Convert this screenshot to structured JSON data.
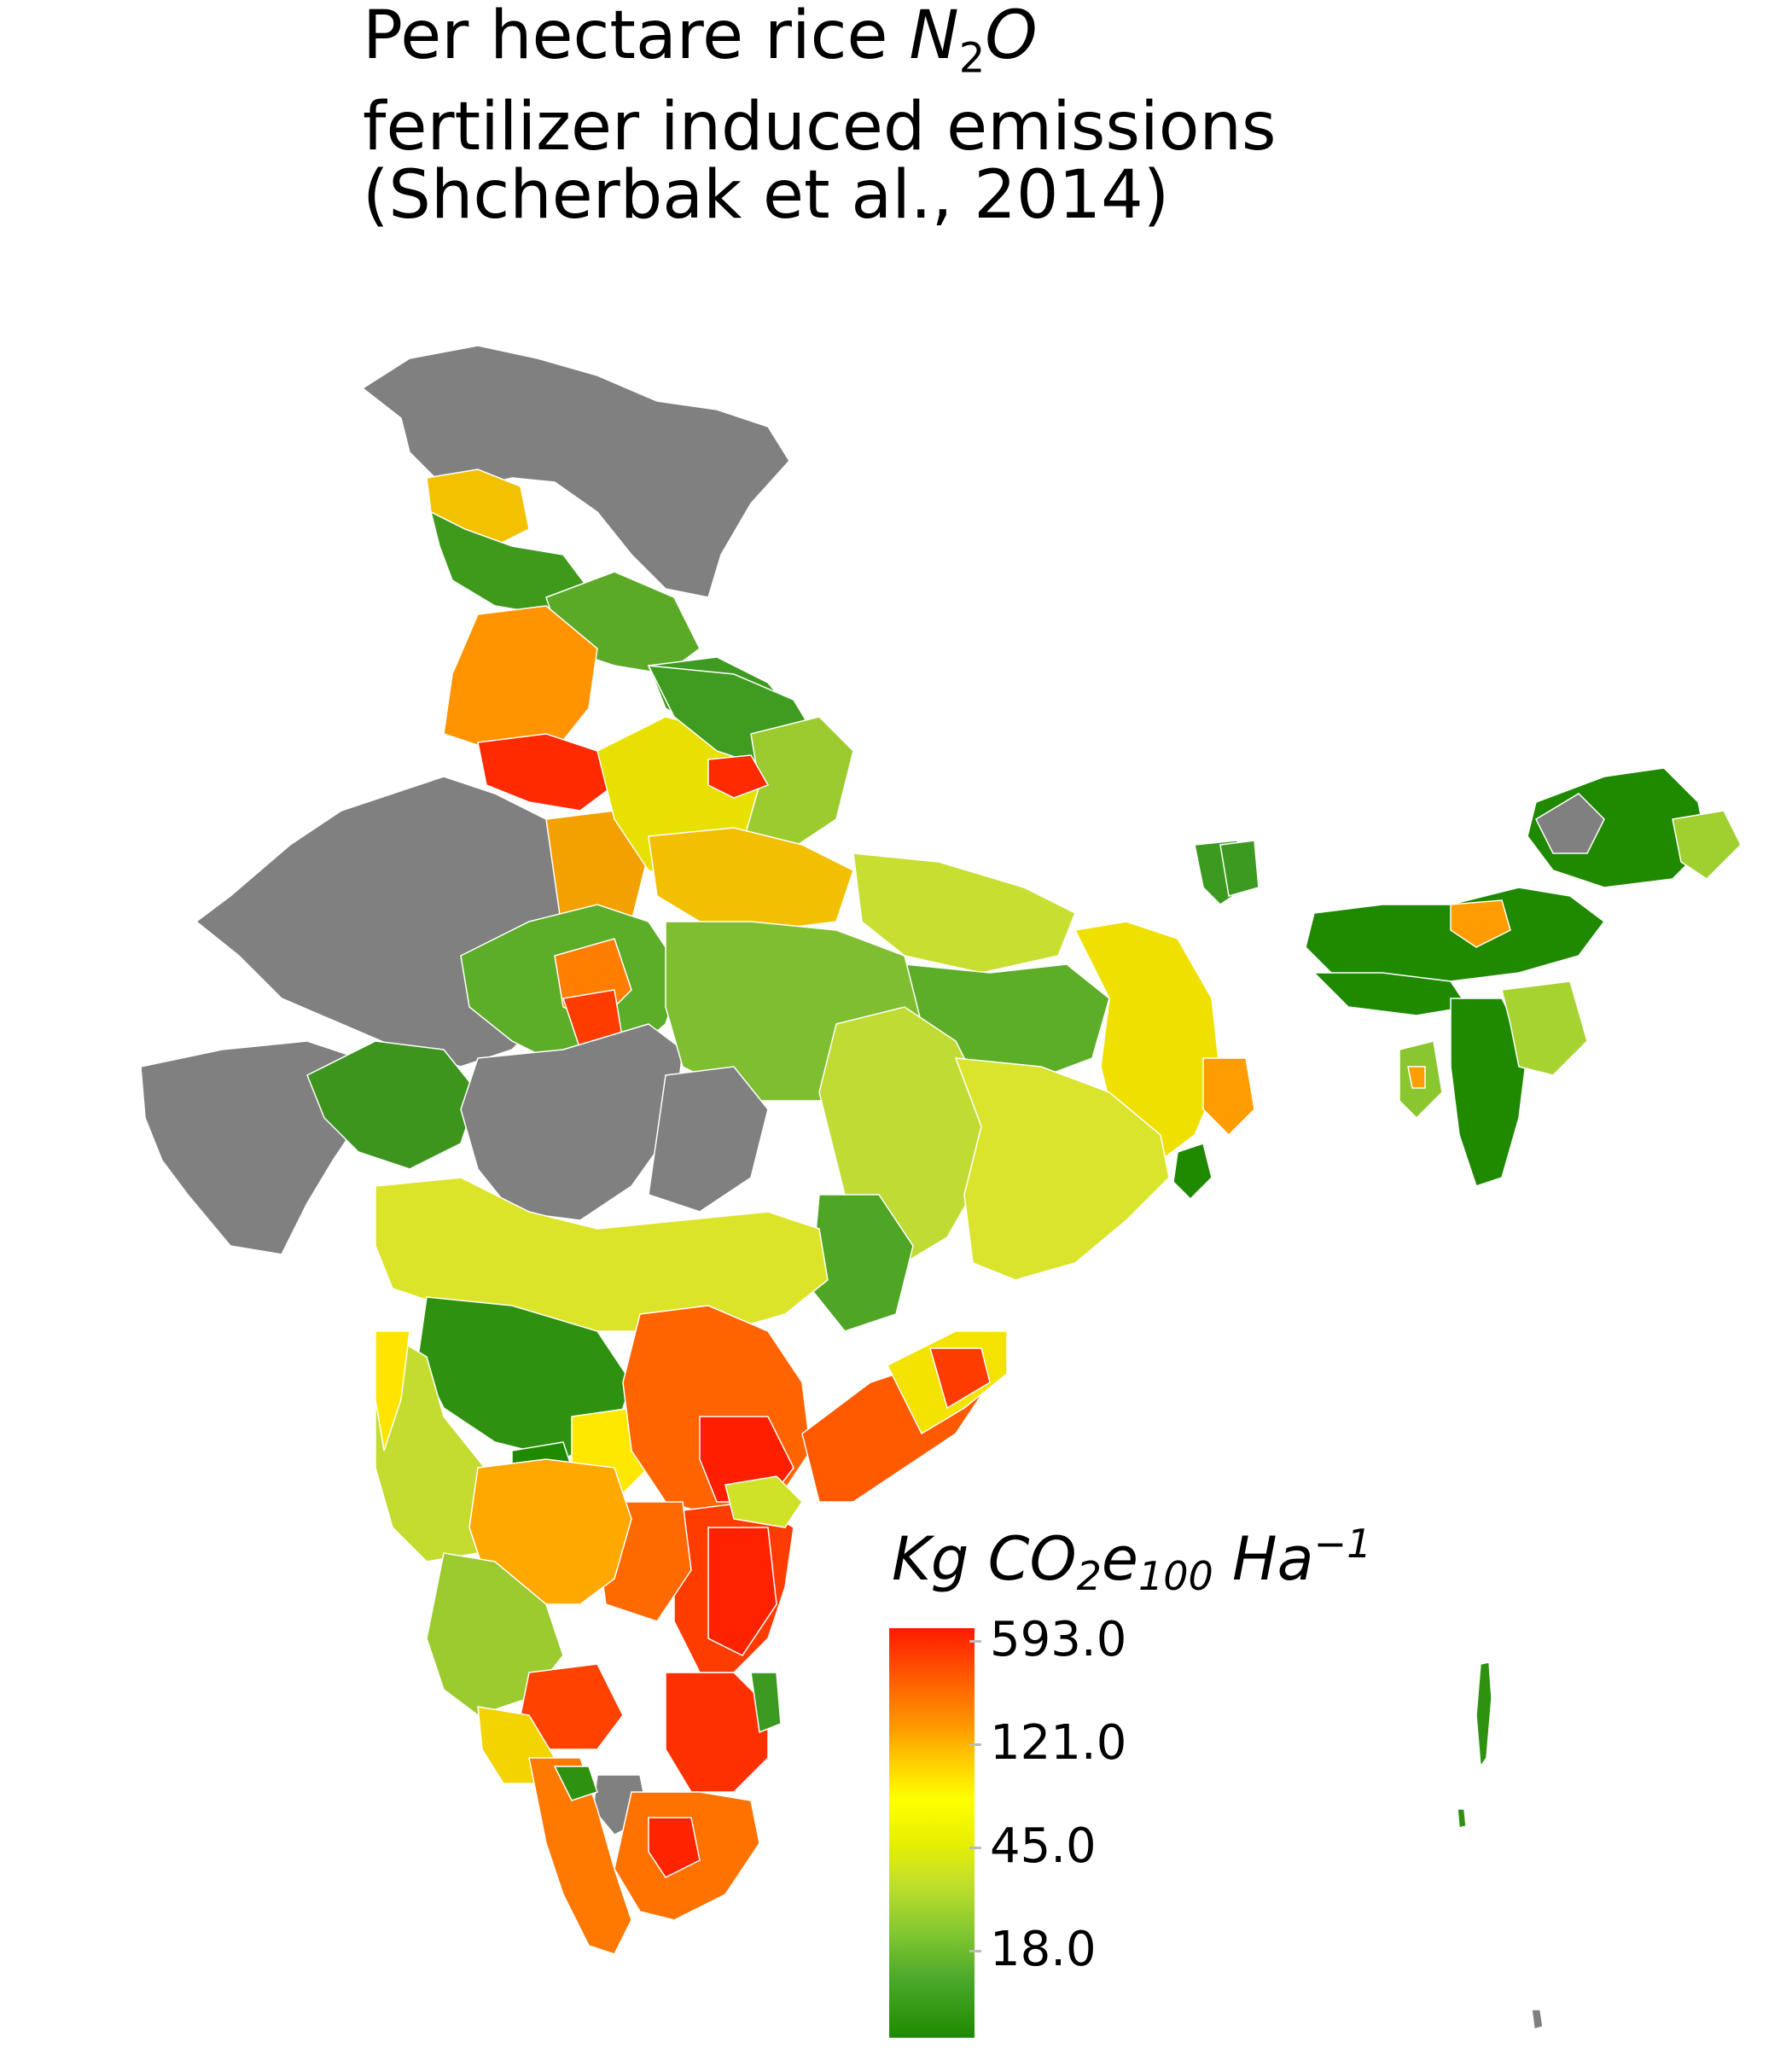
{
  "title": {
    "line1_prefix": "Per hectare rice ",
    "line1_species": "N",
    "line1_sub": "2",
    "line1_species_end": "O",
    "line2": "fertilizer induced emissions",
    "line3": "(Shcherbak et al., 2014)"
  },
  "legend": {
    "title_kg": "Kg ",
    "title_co": "CO",
    "title_sub2": "2",
    "title_e": "e",
    "title_sub100": "100",
    "title_ha": " Ha",
    "title_sup": "−1",
    "ticks": [
      {
        "label": "593.0",
        "value": 593.0
      },
      {
        "label": "121.0",
        "value": 121.0
      },
      {
        "label": "45.0",
        "value": 45.0
      },
      {
        "label": "18.0",
        "value": 18.0
      }
    ]
  },
  "colors": {
    "no_data": "#808080",
    "low": "#1f8a00",
    "mid_low": "#84c830",
    "mid": "#ffff00",
    "mid_high": "#ff9800",
    "high": "#ff1a00",
    "border": "#ffffff"
  }
}
